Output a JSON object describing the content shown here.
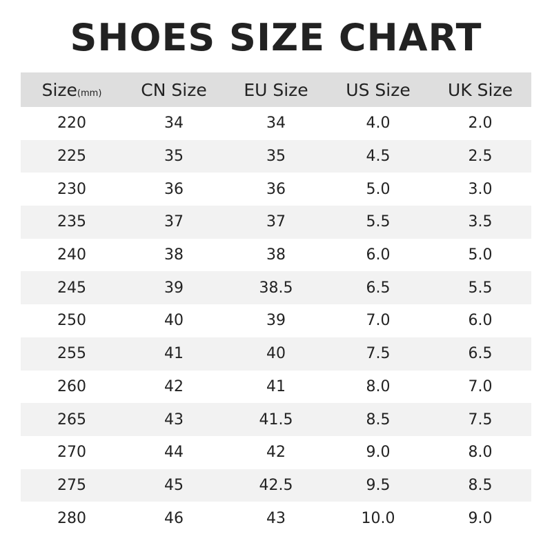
{
  "title": "SHOES SIZE CHART",
  "colors": {
    "header_bg": "#dedede",
    "stripe_bg": "#f2f2f2",
    "text": "#222222"
  },
  "columns": [
    {
      "label": "Size",
      "unit": "(mm)"
    },
    {
      "label": "CN Size"
    },
    {
      "label": "EU Size"
    },
    {
      "label": "US Size"
    },
    {
      "label": "UK Size"
    }
  ],
  "rows": [
    [
      "220",
      "34",
      "34",
      "4.0",
      "2.0"
    ],
    [
      "225",
      "35",
      "35",
      "4.5",
      "2.5"
    ],
    [
      "230",
      "36",
      "36",
      "5.0",
      "3.0"
    ],
    [
      "235",
      "37",
      "37",
      "5.5",
      "3.5"
    ],
    [
      "240",
      "38",
      "38",
      "6.0",
      "5.0"
    ],
    [
      "245",
      "39",
      "38.5",
      "6.5",
      "5.5"
    ],
    [
      "250",
      "40",
      "39",
      "7.0",
      "6.0"
    ],
    [
      "255",
      "41",
      "40",
      "7.5",
      "6.5"
    ],
    [
      "260",
      "42",
      "41",
      "8.0",
      "7.0"
    ],
    [
      "265",
      "43",
      "41.5",
      "8.5",
      "7.5"
    ],
    [
      "270",
      "44",
      "42",
      "9.0",
      "8.0"
    ],
    [
      "275",
      "45",
      "42.5",
      "9.5",
      "8.5"
    ],
    [
      "280",
      "46",
      "43",
      "10.0",
      "9.0"
    ]
  ]
}
